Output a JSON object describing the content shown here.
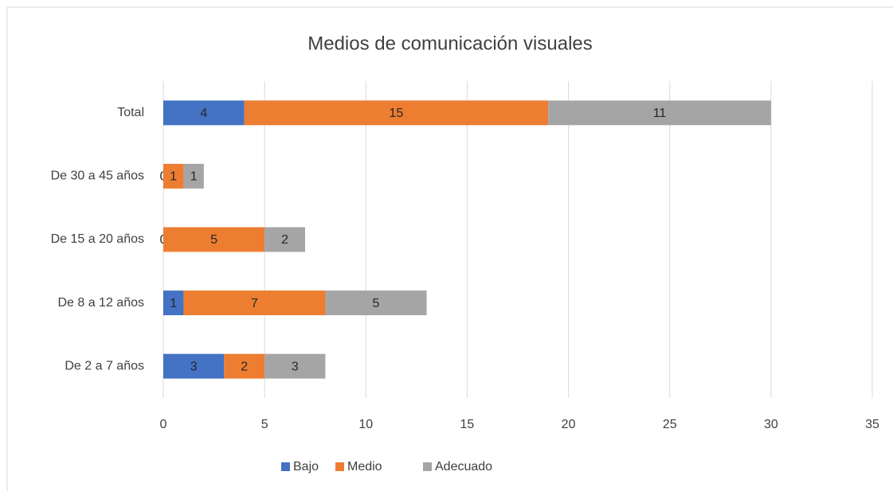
{
  "chart_data": {
    "type": "stacked-bar-horizontal",
    "title": "Medios de comunicación visuales",
    "categories": [
      "De 2 a 7 años",
      "De 8 a 12 años",
      "De 15 a 20 años",
      "De 30 a 45 años",
      "Total"
    ],
    "series": [
      {
        "name": "Bajo",
        "color": "#4472c4",
        "values": [
          3,
          1,
          0,
          0,
          4
        ]
      },
      {
        "name": "Medio",
        "color": "#ed7d31",
        "values": [
          2,
          7,
          5,
          1,
          15
        ]
      },
      {
        "name": "Adecuado",
        "color": "#a5a5a5",
        "values": [
          3,
          5,
          2,
          1,
          11
        ]
      }
    ],
    "xlim": [
      0,
      35
    ],
    "xticks": [
      0,
      5,
      10,
      15,
      20,
      25,
      30,
      35
    ],
    "grid": true,
    "legend": "bottom"
  }
}
